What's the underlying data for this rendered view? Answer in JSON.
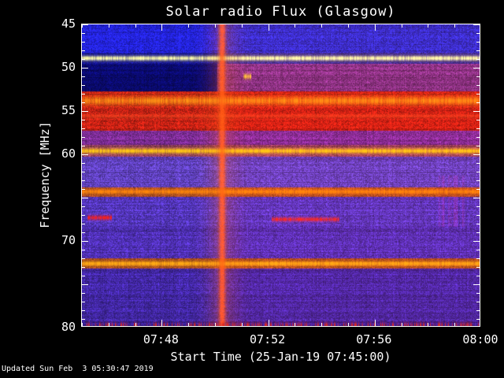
{
  "colors": {
    "page_background": "#000000",
    "text": "#ffffff",
    "frame": "#ffffff"
  },
  "chart_data": {
    "type": "heatmap",
    "title": "Solar radio Flux (Glasgow)",
    "xlabel": "Start Time (25-Jan-19 07:45:00)",
    "ylabel": "Frequency [MHz]",
    "updated_label": "Updated Sun Feb  3 05:30:47 2019",
    "x_range_minutes": [
      0,
      15
    ],
    "x_minor_step": 1,
    "x_major_ticks": [
      {
        "minute": 3,
        "label": "07:48"
      },
      {
        "minute": 7,
        "label": "07:52"
      },
      {
        "minute": 11,
        "label": "07:56"
      },
      {
        "minute": 15,
        "label": "08:00"
      }
    ],
    "y_range": [
      45,
      80
    ],
    "y_minor_step": 1,
    "y_major_ticks": [
      45,
      50,
      55,
      60,
      65,
      70,
      75,
      80
    ],
    "y_tick_labels": [
      {
        "freq": 45,
        "label": "45"
      },
      {
        "freq": 50,
        "label": "50"
      },
      {
        "freq": 55,
        "label": "55"
      },
      {
        "freq": 60,
        "label": "60"
      },
      {
        "freq": 70,
        "label": "70"
      },
      {
        "freq": 80,
        "label": "80"
      }
    ],
    "background_zones": [
      {
        "f0": 45.0,
        "f1": 48.4,
        "color": "#2d2dc8",
        "pre_burst_color": "#2323dc"
      },
      {
        "f0": 48.4,
        "f1": 49.6,
        "color": "#32288c",
        "pre_burst_color": "#14148c"
      },
      {
        "f0": 49.6,
        "f1": 52.8,
        "color": "#7d3282",
        "pre_burst_color": "#0a0a6e"
      },
      {
        "f0": 52.8,
        "f1": 57.4,
        "color": "#c32114"
      },
      {
        "f0": 57.4,
        "f1": 59.0,
        "color": "#7d2d96"
      },
      {
        "f0": 59.0,
        "f1": 60.4,
        "color": "#8c3c5a"
      },
      {
        "f0": 60.4,
        "f1": 63.9,
        "color": "#5f41bd"
      },
      {
        "f0": 63.9,
        "f1": 65.0,
        "color": "#a04623"
      },
      {
        "f0": 65.0,
        "f1": 68.4,
        "color": "#5537be"
      },
      {
        "f0": 68.4,
        "f1": 72.1,
        "color": "#4f30b4"
      },
      {
        "f0": 72.1,
        "f1": 73.3,
        "color": "#96411e"
      },
      {
        "f0": 73.3,
        "f1": 79.4,
        "color": "#4328a5"
      },
      {
        "f0": 79.4,
        "f1": 80.1,
        "color": "#371e8c"
      }
    ],
    "interference_lines": [
      {
        "freq": 49.0,
        "width": 0.28,
        "color": "#ffffaa",
        "intensity": 0.95
      },
      {
        "freq": 53.9,
        "width": 0.5,
        "color": "#ff9614",
        "intensity": 0.8
      },
      {
        "freq": 55.7,
        "width": 0.25,
        "color": "#f55023",
        "intensity": 0.45
      },
      {
        "freq": 59.7,
        "width": 0.3,
        "color": "#ffc814",
        "intensity": 0.95
      },
      {
        "freq": 64.4,
        "width": 0.3,
        "color": "#ff870a",
        "intensity": 0.9
      },
      {
        "freq": 72.7,
        "width": 0.3,
        "color": "#ffaa14",
        "intensity": 0.95
      }
    ],
    "transient_lines": [
      {
        "freq": 67.4,
        "width": 0.26,
        "t0": 0.25,
        "t1": 1.15,
        "color": "#ff1e14",
        "intensity": 0.85
      },
      {
        "freq": 67.6,
        "width": 0.24,
        "t0": 7.15,
        "t1": 9.7,
        "color": "#ff2814",
        "intensity": 0.8
      },
      {
        "freq": 51.1,
        "width": 0.3,
        "t0": 6.1,
        "t1": 6.4,
        "color": "#ffc83c",
        "intensity": 0.9
      }
    ],
    "burst": {
      "time_min": 5.3,
      "core_sigma": 0.12,
      "halo_sigma": 0.55,
      "core_intensity": 0.8,
      "halo_intensity": 0.28,
      "color": "#ff6914"
    },
    "post_burst_red_tint": 16,
    "streak_patch": {
      "t0": 13.4,
      "t1": 14.5,
      "f0": 62.5,
      "f1": 68.5,
      "color": "#c83214",
      "intensity": 0.9
    },
    "bottom_speckle": {
      "freq": 79.8,
      "width": 0.3,
      "threshold": 0.52,
      "color": "#dc281e"
    }
  }
}
